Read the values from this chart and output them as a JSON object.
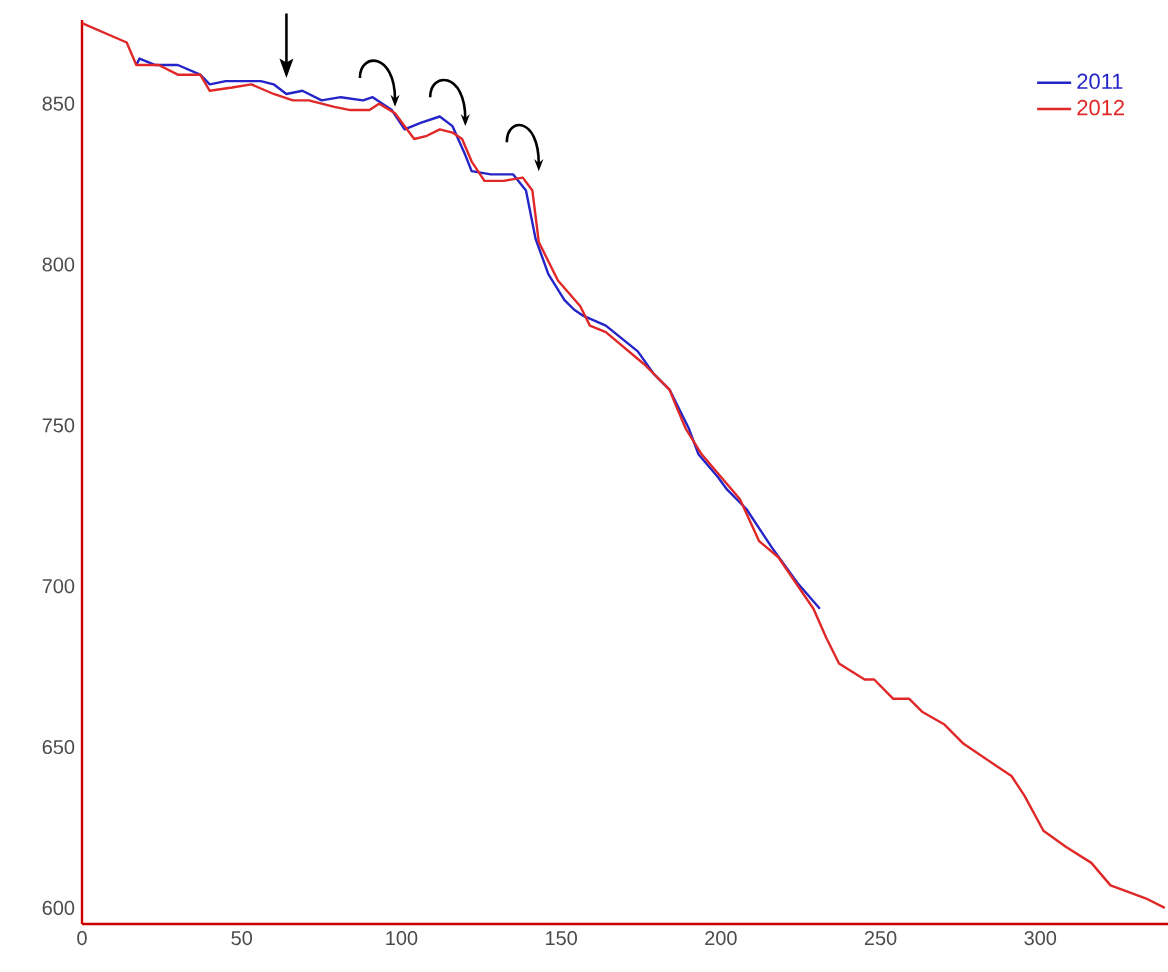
{
  "chart_data": {
    "type": "line",
    "xlim": [
      0,
      340
    ],
    "ylim": [
      595,
      876
    ],
    "xticks": [
      0,
      50,
      100,
      150,
      200,
      250,
      300
    ],
    "yticks": [
      600,
      650,
      700,
      750,
      800,
      850
    ],
    "legend": "top right",
    "grid": false,
    "series": [
      {
        "name": "2011",
        "color": "#2424c8",
        "x": [
          17,
          18,
          23,
          30,
          37,
          40,
          45,
          50,
          56,
          60,
          64,
          69,
          75,
          81,
          88,
          91,
          97,
          101,
          106,
          112,
          116,
          120,
          122,
          128,
          135,
          139,
          142,
          146,
          151,
          154,
          157,
          164,
          174,
          179,
          184,
          190,
          193,
          199,
          202,
          208,
          216,
          224,
          231
        ],
        "values": [
          862,
          864,
          862,
          862,
          859,
          856,
          857,
          857,
          857,
          856,
          853,
          854,
          851,
          852,
          851,
          852,
          848,
          842,
          844,
          846,
          843,
          834,
          829,
          828,
          828,
          823,
          808,
          797,
          789,
          786,
          784,
          781,
          773,
          766,
          761,
          749,
          741,
          734,
          730,
          724,
          712,
          701,
          693
        ]
      },
      {
        "name": "2012",
        "color": "#e02828",
        "x": [
          0,
          14,
          17,
          24,
          30,
          37,
          40,
          47,
          53,
          60,
          66,
          71,
          79,
          84,
          90,
          93,
          98,
          104,
          108,
          112,
          116,
          119,
          122,
          126,
          132,
          138,
          141,
          143,
          149,
          156,
          159,
          164,
          176,
          184,
          186,
          189,
          194,
          206,
          212,
          218,
          229,
          233,
          237,
          245,
          248,
          254,
          259,
          263,
          270,
          276,
          285,
          291,
          295,
          301,
          308,
          316,
          322,
          333,
          339
        ],
        "values": [
          875,
          869,
          862,
          862,
          859,
          859,
          854,
          855,
          856,
          853,
          851,
          851,
          849,
          848,
          848,
          850,
          847,
          839,
          840,
          842,
          841,
          839,
          832,
          826,
          826,
          827,
          823,
          807,
          795,
          787,
          781,
          779,
          769,
          761,
          756,
          749,
          741,
          727,
          714,
          709,
          693,
          684,
          676,
          671,
          671,
          665,
          665,
          661,
          657,
          651,
          645,
          641,
          635,
          624,
          619,
          614,
          607,
          603,
          600
        ]
      }
    ]
  }
}
